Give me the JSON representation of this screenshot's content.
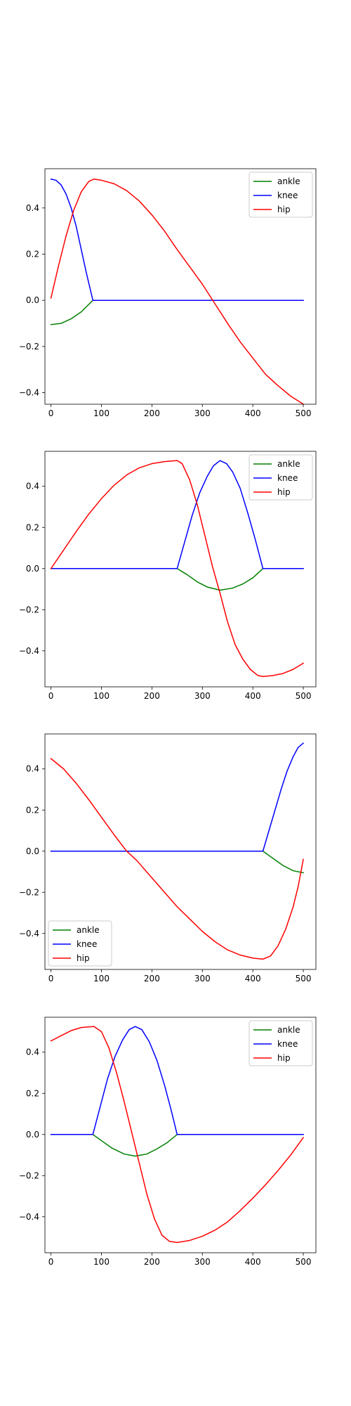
{
  "chart_data": [
    {
      "type": "line",
      "xlim": [
        -12,
        525
      ],
      "ylim": [
        -0.45,
        0.57
      ],
      "xticks": [
        0,
        100,
        200,
        300,
        400,
        500
      ],
      "xtick_labels": [
        "0",
        "100",
        "200",
        "300",
        "400",
        "500"
      ],
      "yticks": [
        -0.4,
        -0.2,
        0.0,
        0.2,
        0.4
      ],
      "ytick_labels": [
        "−0.4",
        "−0.2",
        "0.0",
        "0.2",
        "0.4"
      ],
      "legend": "top-right",
      "grid": false,
      "series": [
        {
          "name": "ankle",
          "color": "#008000",
          "points": [
            [
              0,
              -0.105
            ],
            [
              20,
              -0.1
            ],
            [
              40,
              -0.08
            ],
            [
              60,
              -0.05
            ],
            [
              83,
              0.0
            ],
            [
              500,
              0.0
            ]
          ]
        },
        {
          "name": "knee",
          "color": "#0000ff",
          "points": [
            [
              0,
              0.525
            ],
            [
              10,
              0.52
            ],
            [
              20,
              0.5
            ],
            [
              30,
              0.46
            ],
            [
              40,
              0.4
            ],
            [
              50,
              0.32
            ],
            [
              60,
              0.22
            ],
            [
              70,
              0.12
            ],
            [
              83,
              0.0
            ],
            [
              500,
              0.0
            ]
          ]
        },
        {
          "name": "hip",
          "color": "#ff0000",
          "points": [
            [
              0,
              0.01
            ],
            [
              15,
              0.15
            ],
            [
              30,
              0.28
            ],
            [
              45,
              0.39
            ],
            [
              60,
              0.47
            ],
            [
              75,
              0.515
            ],
            [
              85,
              0.525
            ],
            [
              100,
              0.52
            ],
            [
              125,
              0.505
            ],
            [
              150,
              0.475
            ],
            [
              175,
              0.43
            ],
            [
              200,
              0.37
            ],
            [
              225,
              0.3
            ],
            [
              250,
              0.22
            ],
            [
              275,
              0.145
            ],
            [
              300,
              0.07
            ],
            [
              325,
              -0.015
            ],
            [
              350,
              -0.1
            ],
            [
              375,
              -0.18
            ],
            [
              400,
              -0.25
            ],
            [
              425,
              -0.32
            ],
            [
              450,
              -0.37
            ],
            [
              475,
              -0.415
            ],
            [
              500,
              -0.45
            ]
          ]
        }
      ]
    },
    {
      "type": "line",
      "xlim": [
        -12,
        525
      ],
      "ylim": [
        -0.575,
        0.57
      ],
      "xticks": [
        0,
        100,
        200,
        300,
        400,
        500
      ],
      "xtick_labels": [
        "0",
        "100",
        "200",
        "300",
        "400",
        "500"
      ],
      "yticks": [
        -0.4,
        -0.2,
        0.0,
        0.2,
        0.4
      ],
      "ytick_labels": [
        "−0.4",
        "−0.2",
        "0.0",
        "0.2",
        "0.4"
      ],
      "legend": "top-right",
      "grid": false,
      "series": [
        {
          "name": "ankle",
          "color": "#008000",
          "points": [
            [
              0,
              0.0
            ],
            [
              250,
              0.0
            ],
            [
              270,
              -0.03
            ],
            [
              290,
              -0.065
            ],
            [
              310,
              -0.09
            ],
            [
              335,
              -0.105
            ],
            [
              360,
              -0.095
            ],
            [
              380,
              -0.075
            ],
            [
              400,
              -0.045
            ],
            [
              420,
              0.0
            ],
            [
              500,
              0.0
            ]
          ]
        },
        {
          "name": "knee",
          "color": "#0000ff",
          "points": [
            [
              0,
              0.0
            ],
            [
              250,
              0.0
            ],
            [
              265,
              0.13
            ],
            [
              280,
              0.26
            ],
            [
              295,
              0.37
            ],
            [
              310,
              0.45
            ],
            [
              322,
              0.5
            ],
            [
              335,
              0.525
            ],
            [
              348,
              0.51
            ],
            [
              360,
              0.47
            ],
            [
              375,
              0.39
            ],
            [
              390,
              0.27
            ],
            [
              405,
              0.14
            ],
            [
              420,
              0.0
            ],
            [
              500,
              0.0
            ]
          ]
        },
        {
          "name": "hip",
          "color": "#ff0000",
          "points": [
            [
              0,
              0.0
            ],
            [
              25,
              0.09
            ],
            [
              50,
              0.18
            ],
            [
              75,
              0.265
            ],
            [
              100,
              0.34
            ],
            [
              125,
              0.405
            ],
            [
              150,
              0.455
            ],
            [
              175,
              0.49
            ],
            [
              200,
              0.51
            ],
            [
              225,
              0.52
            ],
            [
              250,
              0.525
            ],
            [
              260,
              0.51
            ],
            [
              275,
              0.43
            ],
            [
              290,
              0.31
            ],
            [
              305,
              0.16
            ],
            [
              320,
              0.01
            ],
            [
              335,
              -0.12
            ],
            [
              350,
              -0.26
            ],
            [
              365,
              -0.37
            ],
            [
              380,
              -0.44
            ],
            [
              395,
              -0.49
            ],
            [
              410,
              -0.52
            ],
            [
              420,
              -0.525
            ],
            [
              440,
              -0.52
            ],
            [
              460,
              -0.51
            ],
            [
              480,
              -0.49
            ],
            [
              500,
              -0.46
            ]
          ]
        }
      ]
    },
    {
      "type": "line",
      "xlim": [
        -12,
        525
      ],
      "ylim": [
        -0.575,
        0.57
      ],
      "xticks": [
        0,
        100,
        200,
        300,
        400,
        500
      ],
      "xtick_labels": [
        "0",
        "100",
        "200",
        "300",
        "400",
        "500"
      ],
      "yticks": [
        -0.4,
        -0.2,
        0.0,
        0.2,
        0.4
      ],
      "ytick_labels": [
        "−0.4",
        "−0.2",
        "0.0",
        "0.2",
        "0.4"
      ],
      "legend": "bottom-left",
      "grid": false,
      "series": [
        {
          "name": "ankle",
          "color": "#008000",
          "points": [
            [
              0,
              0.0
            ],
            [
              420,
              0.0
            ],
            [
              440,
              -0.035
            ],
            [
              460,
              -0.07
            ],
            [
              480,
              -0.095
            ],
            [
              500,
              -0.105
            ]
          ]
        },
        {
          "name": "knee",
          "color": "#0000ff",
          "points": [
            [
              0,
              0.0
            ],
            [
              420,
              0.0
            ],
            [
              432,
              0.1
            ],
            [
              444,
              0.2
            ],
            [
              456,
              0.3
            ],
            [
              468,
              0.39
            ],
            [
              480,
              0.46
            ],
            [
              490,
              0.505
            ],
            [
              500,
              0.525
            ]
          ]
        },
        {
          "name": "hip",
          "color": "#ff0000",
          "points": [
            [
              0,
              0.45
            ],
            [
              25,
              0.4
            ],
            [
              50,
              0.33
            ],
            [
              75,
              0.25
            ],
            [
              100,
              0.165
            ],
            [
              125,
              0.08
            ],
            [
              150,
              0.0
            ],
            [
              170,
              -0.045
            ],
            [
              200,
              -0.13
            ],
            [
              225,
              -0.2
            ],
            [
              250,
              -0.27
            ],
            [
              275,
              -0.33
            ],
            [
              300,
              -0.39
            ],
            [
              325,
              -0.44
            ],
            [
              350,
              -0.48
            ],
            [
              375,
              -0.505
            ],
            [
              400,
              -0.52
            ],
            [
              420,
              -0.525
            ],
            [
              435,
              -0.51
            ],
            [
              450,
              -0.46
            ],
            [
              465,
              -0.38
            ],
            [
              480,
              -0.27
            ],
            [
              490,
              -0.17
            ],
            [
              500,
              -0.04
            ]
          ]
        }
      ]
    },
    {
      "type": "line",
      "xlim": [
        -12,
        525
      ],
      "ylim": [
        -0.575,
        0.57
      ],
      "xticks": [
        0,
        100,
        200,
        300,
        400,
        500
      ],
      "xtick_labels": [
        "0",
        "100",
        "200",
        "300",
        "400",
        "500"
      ],
      "yticks": [
        -0.4,
        -0.2,
        0.0,
        0.2,
        0.4
      ],
      "ytick_labels": [
        "−0.4",
        "−0.2",
        "0.0",
        "0.2",
        "0.4"
      ],
      "legend": "top-right",
      "grid": false,
      "series": [
        {
          "name": "ankle",
          "color": "#008000",
          "points": [
            [
              0,
              0.0
            ],
            [
              83,
              0.0
            ],
            [
              100,
              -0.03
            ],
            [
              120,
              -0.065
            ],
            [
              145,
              -0.095
            ],
            [
              167,
              -0.105
            ],
            [
              190,
              -0.095
            ],
            [
              210,
              -0.07
            ],
            [
              230,
              -0.04
            ],
            [
              250,
              0.0
            ],
            [
              500,
              0.0
            ]
          ]
        },
        {
          "name": "knee",
          "color": "#0000ff",
          "points": [
            [
              0,
              0.0
            ],
            [
              83,
              0.0
            ],
            [
              97,
              0.13
            ],
            [
              112,
              0.27
            ],
            [
              127,
              0.38
            ],
            [
              142,
              0.46
            ],
            [
              155,
              0.51
            ],
            [
              167,
              0.525
            ],
            [
              180,
              0.51
            ],
            [
              195,
              0.45
            ],
            [
              210,
              0.36
            ],
            [
              225,
              0.24
            ],
            [
              238,
              0.12
            ],
            [
              250,
              0.0
            ],
            [
              500,
              0.0
            ]
          ]
        },
        {
          "name": "hip",
          "color": "#ff0000",
          "points": [
            [
              0,
              0.455
            ],
            [
              20,
              0.48
            ],
            [
              40,
              0.505
            ],
            [
              60,
              0.52
            ],
            [
              85,
              0.525
            ],
            [
              100,
              0.5
            ],
            [
              115,
              0.42
            ],
            [
              130,
              0.3
            ],
            [
              145,
              0.16
            ],
            [
              160,
              0.01
            ],
            [
              175,
              -0.14
            ],
            [
              190,
              -0.29
            ],
            [
              205,
              -0.41
            ],
            [
              220,
              -0.49
            ],
            [
              235,
              -0.52
            ],
            [
              250,
              -0.525
            ],
            [
              275,
              -0.515
            ],
            [
              300,
              -0.495
            ],
            [
              325,
              -0.465
            ],
            [
              350,
              -0.425
            ],
            [
              375,
              -0.37
            ],
            [
              400,
              -0.31
            ],
            [
              425,
              -0.245
            ],
            [
              450,
              -0.175
            ],
            [
              475,
              -0.1
            ],
            [
              500,
              -0.015
            ]
          ]
        }
      ]
    }
  ]
}
